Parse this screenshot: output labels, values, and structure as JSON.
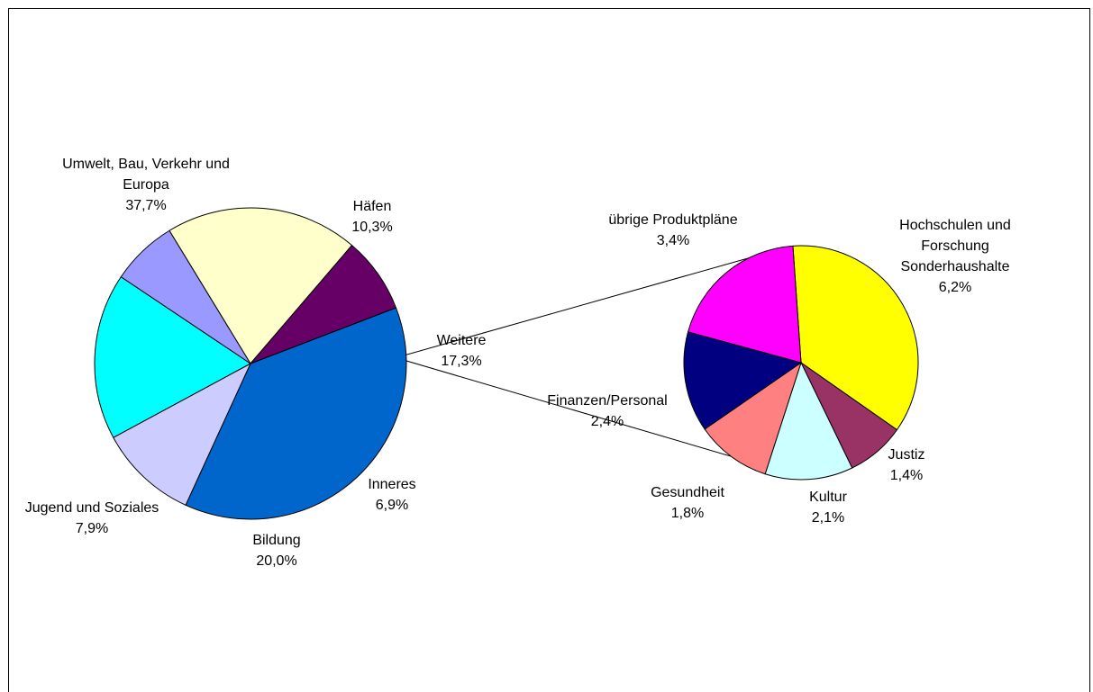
{
  "chart_data": [
    {
      "type": "pie",
      "slices": [
        {
          "label": "Umwelt, Bau, Verkehr und Europa",
          "value": 37.7,
          "value_text": "37,7%",
          "color": "#0066CC"
        },
        {
          "label": "Häfen",
          "value": 10.3,
          "value_text": "10,3%",
          "color": "#CCCCFF"
        },
        {
          "label": "Weitere",
          "value": 17.3,
          "value_text": "17,3%",
          "color": "#00FFFF"
        },
        {
          "label": "Inneres",
          "value": 6.9,
          "value_text": "6,9%",
          "color": "#9999FF"
        },
        {
          "label": "Bildung",
          "value": 20.0,
          "value_text": "20,0%",
          "color": "#FFFFCC"
        },
        {
          "label": "Jugend und Soziales",
          "value": 7.9,
          "value_text": "7,9%",
          "color": "#660066"
        }
      ]
    },
    {
      "type": "pie",
      "slices": [
        {
          "label": "Hochschulen und Forschung Sonderhaushalte",
          "value": 6.2,
          "value_text": "6,2%",
          "color": "#FFFF00"
        },
        {
          "label": "Justiz",
          "value": 1.4,
          "value_text": "1,4%",
          "color": "#993366"
        },
        {
          "label": "Kultur",
          "value": 2.1,
          "value_text": "2,1%",
          "color": "#CCFFFF"
        },
        {
          "label": "Gesundheit",
          "value": 1.8,
          "value_text": "1,8%",
          "color": "#FF8080"
        },
        {
          "label": "Finanzen/Personal",
          "value": 2.4,
          "value_text": "2,4%",
          "color": "#000080"
        },
        {
          "label": "übrige Produktpläne",
          "value": 3.4,
          "value_text": "3,4%",
          "color": "#FF00FF"
        }
      ]
    }
  ]
}
